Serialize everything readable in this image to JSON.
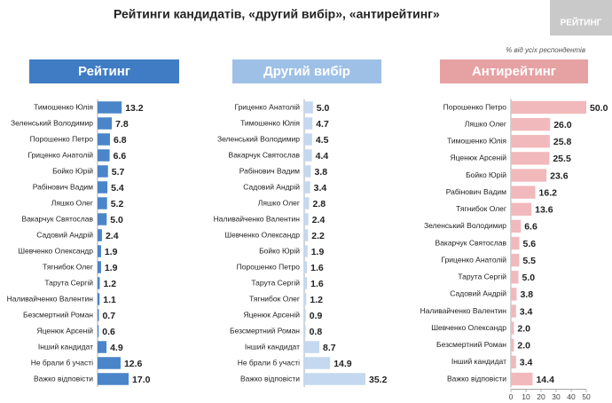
{
  "title": "Рейтинги кандидатів, «другий вибір», «антирейтинг»",
  "note": "% від усіх респондентів",
  "logo": "РЕЙТИНГ",
  "chart_data": [
    {
      "type": "hbar",
      "title": "Рейтинг",
      "header_color": "#3f7cc4",
      "header_text_color": "#ffffff",
      "color": "#4a85c9",
      "categories": [
        "Тимошенко Юлія",
        "Зеленський Володимир",
        "Порошенко Петро",
        "Гриценко Анатолій",
        "Бойко Юрій",
        "Рабінович Вадим",
        "Ляшко Олег",
        "Вакарчук Святослав",
        "Садовий Андрій",
        "Шевченко Олександр",
        "Тягнибок Олег",
        "Тарута Сергій",
        "Наливайченко Валентин",
        "Безсмертний Роман",
        "Яценюк Арсеній",
        "Інший кандидат",
        "Не брали б участі",
        "Важко відповісти"
      ],
      "values": [
        13.2,
        7.8,
        6.8,
        6.6,
        5.7,
        5.4,
        5.2,
        5.0,
        2.4,
        1.9,
        1.9,
        1.2,
        1.1,
        0.7,
        0.6,
        4.9,
        12.6,
        17.0
      ],
      "value_labels": [
        "13.2",
        "7.8",
        "6.8",
        "6.6",
        "5.7",
        "5.4",
        "5.2",
        "5.0",
        "2.4",
        "1.9",
        "1.9",
        "1.2",
        "1.1",
        "0.7",
        "0.6",
        "4.9",
        "12.6",
        "17.0"
      ],
      "xlim": [
        0,
        50
      ]
    },
    {
      "type": "hbar",
      "title": "Другий вибір",
      "header_color": "#9fc0e6",
      "header_text_color": "#ffffff",
      "color": "#c4d8f0",
      "categories": [
        "Гриценко Анатолій",
        "Тимошенко Юлія",
        "Зеленський Володимир",
        "Вакарчук Святослав",
        "Рабінович Вадим",
        "Садовий Андрій",
        "Ляшко Олег",
        "Наливайченко Валентин",
        "Шевченко Олександр",
        "Бойко Юрій",
        "Порошенко Петро",
        "Тарута Сергій",
        "Тягнибок Олег",
        "Яценюк Арсеній",
        "Безсмертний Роман",
        "Інший кандидат",
        "Не брали б участі",
        "Важко відповісти"
      ],
      "values": [
        5.0,
        4.7,
        4.5,
        4.4,
        3.8,
        3.4,
        2.8,
        2.4,
        2.2,
        1.9,
        1.6,
        1.6,
        1.2,
        0.9,
        0.8,
        8.7,
        14.9,
        35.2
      ],
      "value_labels": [
        "5.0",
        "4.7",
        "4.5",
        "4.4",
        "3.8",
        "3.4",
        "2.8",
        "2.4",
        "2.2",
        "1.9",
        "1.6",
        "1.6",
        "1.2",
        "0.9",
        "0.8",
        "8.7",
        "14.9",
        "35.2"
      ],
      "xlim": [
        0,
        50
      ]
    },
    {
      "type": "hbar",
      "title": "Антирейтинг",
      "header_color": "#e6a1a3",
      "header_text_color": "#ffffff",
      "color": "#f1b9bb",
      "categories": [
        "Порошенко Петро",
        "Ляшко Олег",
        "Тимошенко Юлія",
        "Яценюк Арсеній",
        "Бойко Юрій",
        "Рабінович Вадим",
        "Тягнибок Олег",
        "Зеленський Володимир",
        "Вакарчук Святослав",
        "Гриценко Анатолій",
        "Тарута Сергій",
        "Садовий Андрій",
        "Наливайченко Валентин",
        "Шевченко Олександр",
        "Безсмертний Роман",
        "Інший кандидат",
        "Важко відповісти"
      ],
      "values": [
        50.0,
        26.0,
        25.8,
        25.5,
        23.6,
        16.2,
        13.6,
        6.6,
        5.6,
        5.5,
        5.0,
        3.8,
        3.4,
        2.0,
        2.0,
        3.4,
        14.4
      ],
      "value_labels": [
        "50.0",
        "26.0",
        "25.8",
        "25.5",
        "23.6",
        "16.2",
        "13.6",
        "6.6",
        "5.6",
        "5.5",
        "5.0",
        "3.8",
        "3.4",
        "2.0",
        "2.0",
        "3.4",
        "14.4"
      ],
      "xlim": [
        0,
        50
      ],
      "xticks": [
        0,
        10,
        20,
        30,
        40,
        50
      ]
    }
  ]
}
